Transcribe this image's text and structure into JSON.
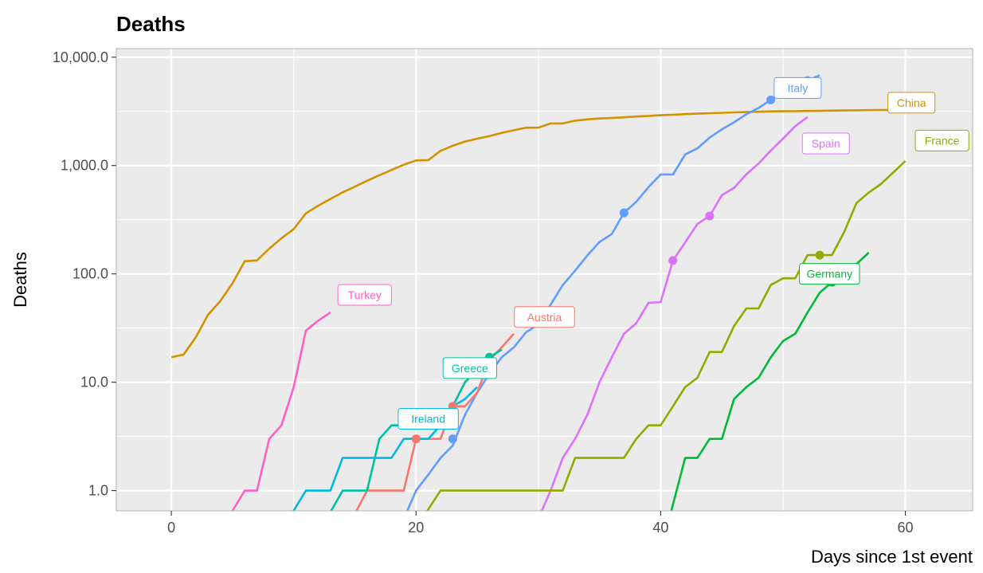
{
  "chart_data": {
    "type": "line",
    "title": "Deaths",
    "xlabel": "Days since 1st event",
    "ylabel": "Deaths",
    "y_scale": "log10",
    "xlim": [
      -4.5,
      65.5
    ],
    "ylim": [
      0.65,
      12000
    ],
    "x_ticks": [
      0,
      20,
      40,
      60
    ],
    "y_ticks": [
      1,
      10,
      100,
      1000,
      10000
    ],
    "y_tick_labels": [
      "1.0",
      "10.0",
      "100.0",
      "1,000.0",
      "10,000.0"
    ],
    "grid": true,
    "legend": "none",
    "series": [
      {
        "name": "China",
        "color": "#d39200",
        "label": {
          "x": 60.5,
          "y": 3800
        },
        "points": [
          [
            0,
            17
          ],
          [
            1,
            18
          ],
          [
            2,
            26
          ],
          [
            3,
            42
          ],
          [
            4,
            56
          ],
          [
            5,
            82
          ],
          [
            6,
            131
          ],
          [
            7,
            133
          ],
          [
            8,
            171
          ],
          [
            9,
            213
          ],
          [
            10,
            259
          ],
          [
            11,
            362
          ],
          [
            12,
            426
          ],
          [
            13,
            492
          ],
          [
            14,
            565
          ],
          [
            15,
            638
          ],
          [
            16,
            724
          ],
          [
            17,
            813
          ],
          [
            18,
            910
          ],
          [
            19,
            1018
          ],
          [
            20,
            1115
          ],
          [
            21,
            1123
          ],
          [
            22,
            1367
          ],
          [
            23,
            1523
          ],
          [
            24,
            1665
          ],
          [
            25,
            1770
          ],
          [
            26,
            1868
          ],
          [
            27,
            2004
          ],
          [
            28,
            2118
          ],
          [
            29,
            2236
          ],
          [
            30,
            2236
          ],
          [
            31,
            2445
          ],
          [
            32,
            2445
          ],
          [
            33,
            2595
          ],
          [
            34,
            2665
          ],
          [
            35,
            2716
          ],
          [
            36,
            2744
          ],
          [
            37,
            2788
          ],
          [
            38,
            2835
          ],
          [
            39,
            2870
          ],
          [
            40,
            2912
          ],
          [
            41,
            2943
          ],
          [
            42,
            2981
          ],
          [
            43,
            3012
          ],
          [
            44,
            3042
          ],
          [
            45,
            3070
          ],
          [
            46,
            3097
          ],
          [
            47,
            3119
          ],
          [
            48,
            3136
          ],
          [
            49,
            3158
          ],
          [
            50,
            3169
          ],
          [
            51,
            3176
          ],
          [
            52,
            3189
          ],
          [
            53,
            3199
          ],
          [
            54,
            3213
          ],
          [
            55,
            3226
          ],
          [
            56,
            3237
          ],
          [
            57,
            3245
          ],
          [
            58,
            3249
          ],
          [
            59,
            3253
          ],
          [
            60,
            3261
          ],
          [
            61,
            3270
          ],
          [
            62,
            3277
          ]
        ],
        "markers": []
      },
      {
        "name": "Italy",
        "color": "#619cff",
        "label": {
          "x": 51.2,
          "y": 5200
        },
        "points": [
          [
            19,
            0.55
          ],
          [
            20,
            1
          ],
          [
            21,
            1.4
          ],
          [
            22,
            2
          ],
          [
            23,
            2.6
          ],
          [
            24,
            5
          ],
          [
            25,
            8
          ],
          [
            26,
            12
          ],
          [
            27,
            17
          ],
          [
            28,
            21
          ],
          [
            29,
            29
          ],
          [
            30,
            34
          ],
          [
            31,
            52
          ],
          [
            32,
            79
          ],
          [
            33,
            107
          ],
          [
            34,
            148
          ],
          [
            35,
            197
          ],
          [
            36,
            233
          ],
          [
            37,
            366
          ],
          [
            38,
            463
          ],
          [
            39,
            631
          ],
          [
            40,
            827
          ],
          [
            41,
            827
          ],
          [
            42,
            1266
          ],
          [
            43,
            1441
          ],
          [
            44,
            1809
          ],
          [
            45,
            2158
          ],
          [
            46,
            2503
          ],
          [
            47,
            2978
          ],
          [
            48,
            3405
          ],
          [
            49,
            4032
          ],
          [
            50,
            4825
          ],
          [
            51,
            5476
          ],
          [
            52,
            6077
          ],
          [
            53,
            6820
          ]
        ],
        "markers": [
          [
            23,
            3
          ],
          [
            37,
            366
          ],
          [
            49,
            4032
          ],
          [
            52,
            6077
          ]
        ]
      },
      {
        "name": "Spain",
        "color": "#db72fb",
        "label": {
          "x": 53.5,
          "y": 1600
        },
        "points": [
          [
            30,
            0.55
          ],
          [
            31,
            1
          ],
          [
            32,
            2
          ],
          [
            33,
            3
          ],
          [
            34,
            5
          ],
          [
            35,
            10
          ],
          [
            36,
            17
          ],
          [
            37,
            28
          ],
          [
            38,
            35
          ],
          [
            39,
            54
          ],
          [
            40,
            55
          ],
          [
            41,
            133
          ],
          [
            42,
            195
          ],
          [
            43,
            289
          ],
          [
            44,
            342
          ],
          [
            45,
            533
          ],
          [
            46,
            623
          ],
          [
            47,
            830
          ],
          [
            48,
            1043
          ],
          [
            49,
            1375
          ],
          [
            50,
            1772
          ],
          [
            51,
            2311
          ],
          [
            52,
            2808
          ]
        ],
        "markers": [
          [
            41,
            133
          ],
          [
            44,
            342
          ]
        ]
      },
      {
        "name": "France",
        "color": "#93aa00",
        "label": {
          "x": 63,
          "y": 1700
        },
        "points": [
          [
            20.5,
            0.55
          ],
          [
            22,
            1
          ],
          [
            32,
            1
          ],
          [
            33,
            2
          ],
          [
            37,
            2
          ],
          [
            38,
            3
          ],
          [
            39,
            4
          ],
          [
            40,
            4
          ],
          [
            41,
            6
          ],
          [
            42,
            9
          ],
          [
            43,
            11
          ],
          [
            44,
            19
          ],
          [
            45,
            19
          ],
          [
            46,
            33
          ],
          [
            47,
            48
          ],
          [
            48,
            48
          ],
          [
            49,
            79
          ],
          [
            50,
            91
          ],
          [
            51,
            91
          ],
          [
            52,
            149
          ],
          [
            53,
            149
          ],
          [
            54,
            149
          ],
          [
            55,
            244
          ],
          [
            56,
            450
          ],
          [
            57,
            562
          ],
          [
            58,
            674
          ],
          [
            59,
            860
          ],
          [
            60,
            1100
          ]
        ],
        "markers": [
          [
            53,
            149
          ]
        ]
      },
      {
        "name": "Germany",
        "color": "#00ba38",
        "label": {
          "x": 53.8,
          "y": 100
        },
        "points": [
          [
            40.7,
            0.55
          ],
          [
            42,
            2
          ],
          [
            43,
            2
          ],
          [
            44,
            3
          ],
          [
            45,
            3
          ],
          [
            46,
            7
          ],
          [
            47,
            9
          ],
          [
            48,
            11
          ],
          [
            49,
            17
          ],
          [
            50,
            24
          ],
          [
            51,
            28
          ],
          [
            52,
            44
          ],
          [
            53,
            67
          ],
          [
            54,
            84
          ],
          [
            55,
            94
          ],
          [
            56,
            123
          ],
          [
            57,
            157
          ]
        ],
        "markers": [
          [
            54,
            84
          ]
        ]
      },
      {
        "name": "Austria",
        "color": "#f8766d",
        "label": {
          "x": 30.5,
          "y": 40
        },
        "points": [
          [
            14.8,
            0.55
          ],
          [
            16,
            1
          ],
          [
            19,
            1
          ],
          [
            20,
            3
          ],
          [
            22,
            3
          ],
          [
            23,
            6
          ],
          [
            24,
            6
          ],
          [
            25,
            8
          ],
          [
            26,
            16
          ],
          [
            27,
            21
          ],
          [
            28,
            28
          ]
        ],
        "markers": [
          [
            20,
            3
          ],
          [
            23,
            6
          ]
        ]
      },
      {
        "name": "Greece",
        "color": "#00c19f",
        "label": {
          "x": 24.4,
          "y": 13.5
        },
        "points": [
          [
            12.7,
            0.55
          ],
          [
            14,
            1
          ],
          [
            16,
            1
          ],
          [
            17,
            3
          ],
          [
            18,
            4
          ],
          [
            19,
            4
          ],
          [
            20,
            5
          ],
          [
            21,
            5
          ],
          [
            22,
            5
          ],
          [
            23,
            6
          ],
          [
            24,
            10
          ],
          [
            25,
            13
          ],
          [
            26,
            17
          ],
          [
            27,
            20
          ]
        ],
        "markers": [
          [
            26,
            17
          ]
        ]
      },
      {
        "name": "Ireland",
        "color": "#00b9e3",
        "label": {
          "x": 21,
          "y": 4.6
        },
        "points": [
          [
            9.6,
            0.55
          ],
          [
            11,
            1
          ],
          [
            13,
            1
          ],
          [
            14,
            2
          ],
          [
            18,
            2
          ],
          [
            19,
            3
          ],
          [
            21,
            3
          ],
          [
            22,
            4
          ],
          [
            23,
            6
          ],
          [
            24,
            7
          ],
          [
            25,
            9
          ]
        ],
        "markers": []
      },
      {
        "name": "Turkey",
        "color": "#ff61c3",
        "label": {
          "x": 15.8,
          "y": 64
        },
        "points": [
          [
            4.6,
            0.55
          ],
          [
            6,
            1
          ],
          [
            7,
            1
          ],
          [
            8,
            3
          ],
          [
            9,
            4
          ],
          [
            10,
            9
          ],
          [
            11,
            30
          ],
          [
            12,
            37
          ],
          [
            13,
            44
          ]
        ],
        "markers": []
      }
    ]
  }
}
